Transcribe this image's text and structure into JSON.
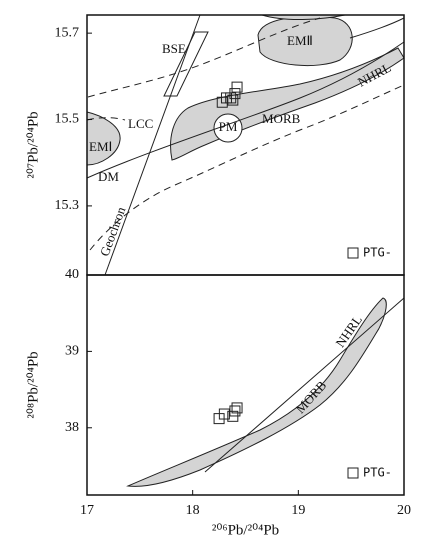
{
  "chart_data": [
    {
      "type": "scatter",
      "ylabel": "²⁰⁷Pb/²⁰⁴Pb",
      "xlim": [
        17,
        20
      ],
      "ylim": [
        15.14,
        15.742
      ],
      "yticks": [
        15.3,
        15.5,
        15.7
      ],
      "series": [
        {
          "name": "PTG-",
          "color": "#222222",
          "x": [
            18.28,
            18.32,
            18.36,
            18.4,
            18.42,
            18.38
          ],
          "values": [
            15.54,
            15.55,
            15.55,
            15.56,
            15.575,
            15.545
          ]
        }
      ],
      "annotations": [
        "BSE",
        "EMⅡ",
        "LCC",
        "PM",
        "MORB",
        "NHRL",
        "EMⅠ",
        "DM",
        "Geochron"
      ]
    },
    {
      "type": "scatter",
      "xlabel": "²⁰⁶Pb/²⁰⁴Pb",
      "ylabel": "²⁰⁸Pb/²⁰⁴Pb",
      "xlim": [
        17,
        20
      ],
      "ylim": [
        37.12,
        40
      ],
      "xticks": [
        17,
        18,
        19,
        20
      ],
      "yticks": [
        38,
        39,
        40
      ],
      "series": [
        {
          "name": "PTG-",
          "color": "#222222",
          "x": [
            18.25,
            18.3,
            18.38,
            18.4,
            18.42
          ],
          "values": [
            38.12,
            38.18,
            38.15,
            38.22,
            38.26
          ]
        }
      ],
      "annotations": [
        "NHRL",
        "MORB"
      ]
    }
  ]
}
